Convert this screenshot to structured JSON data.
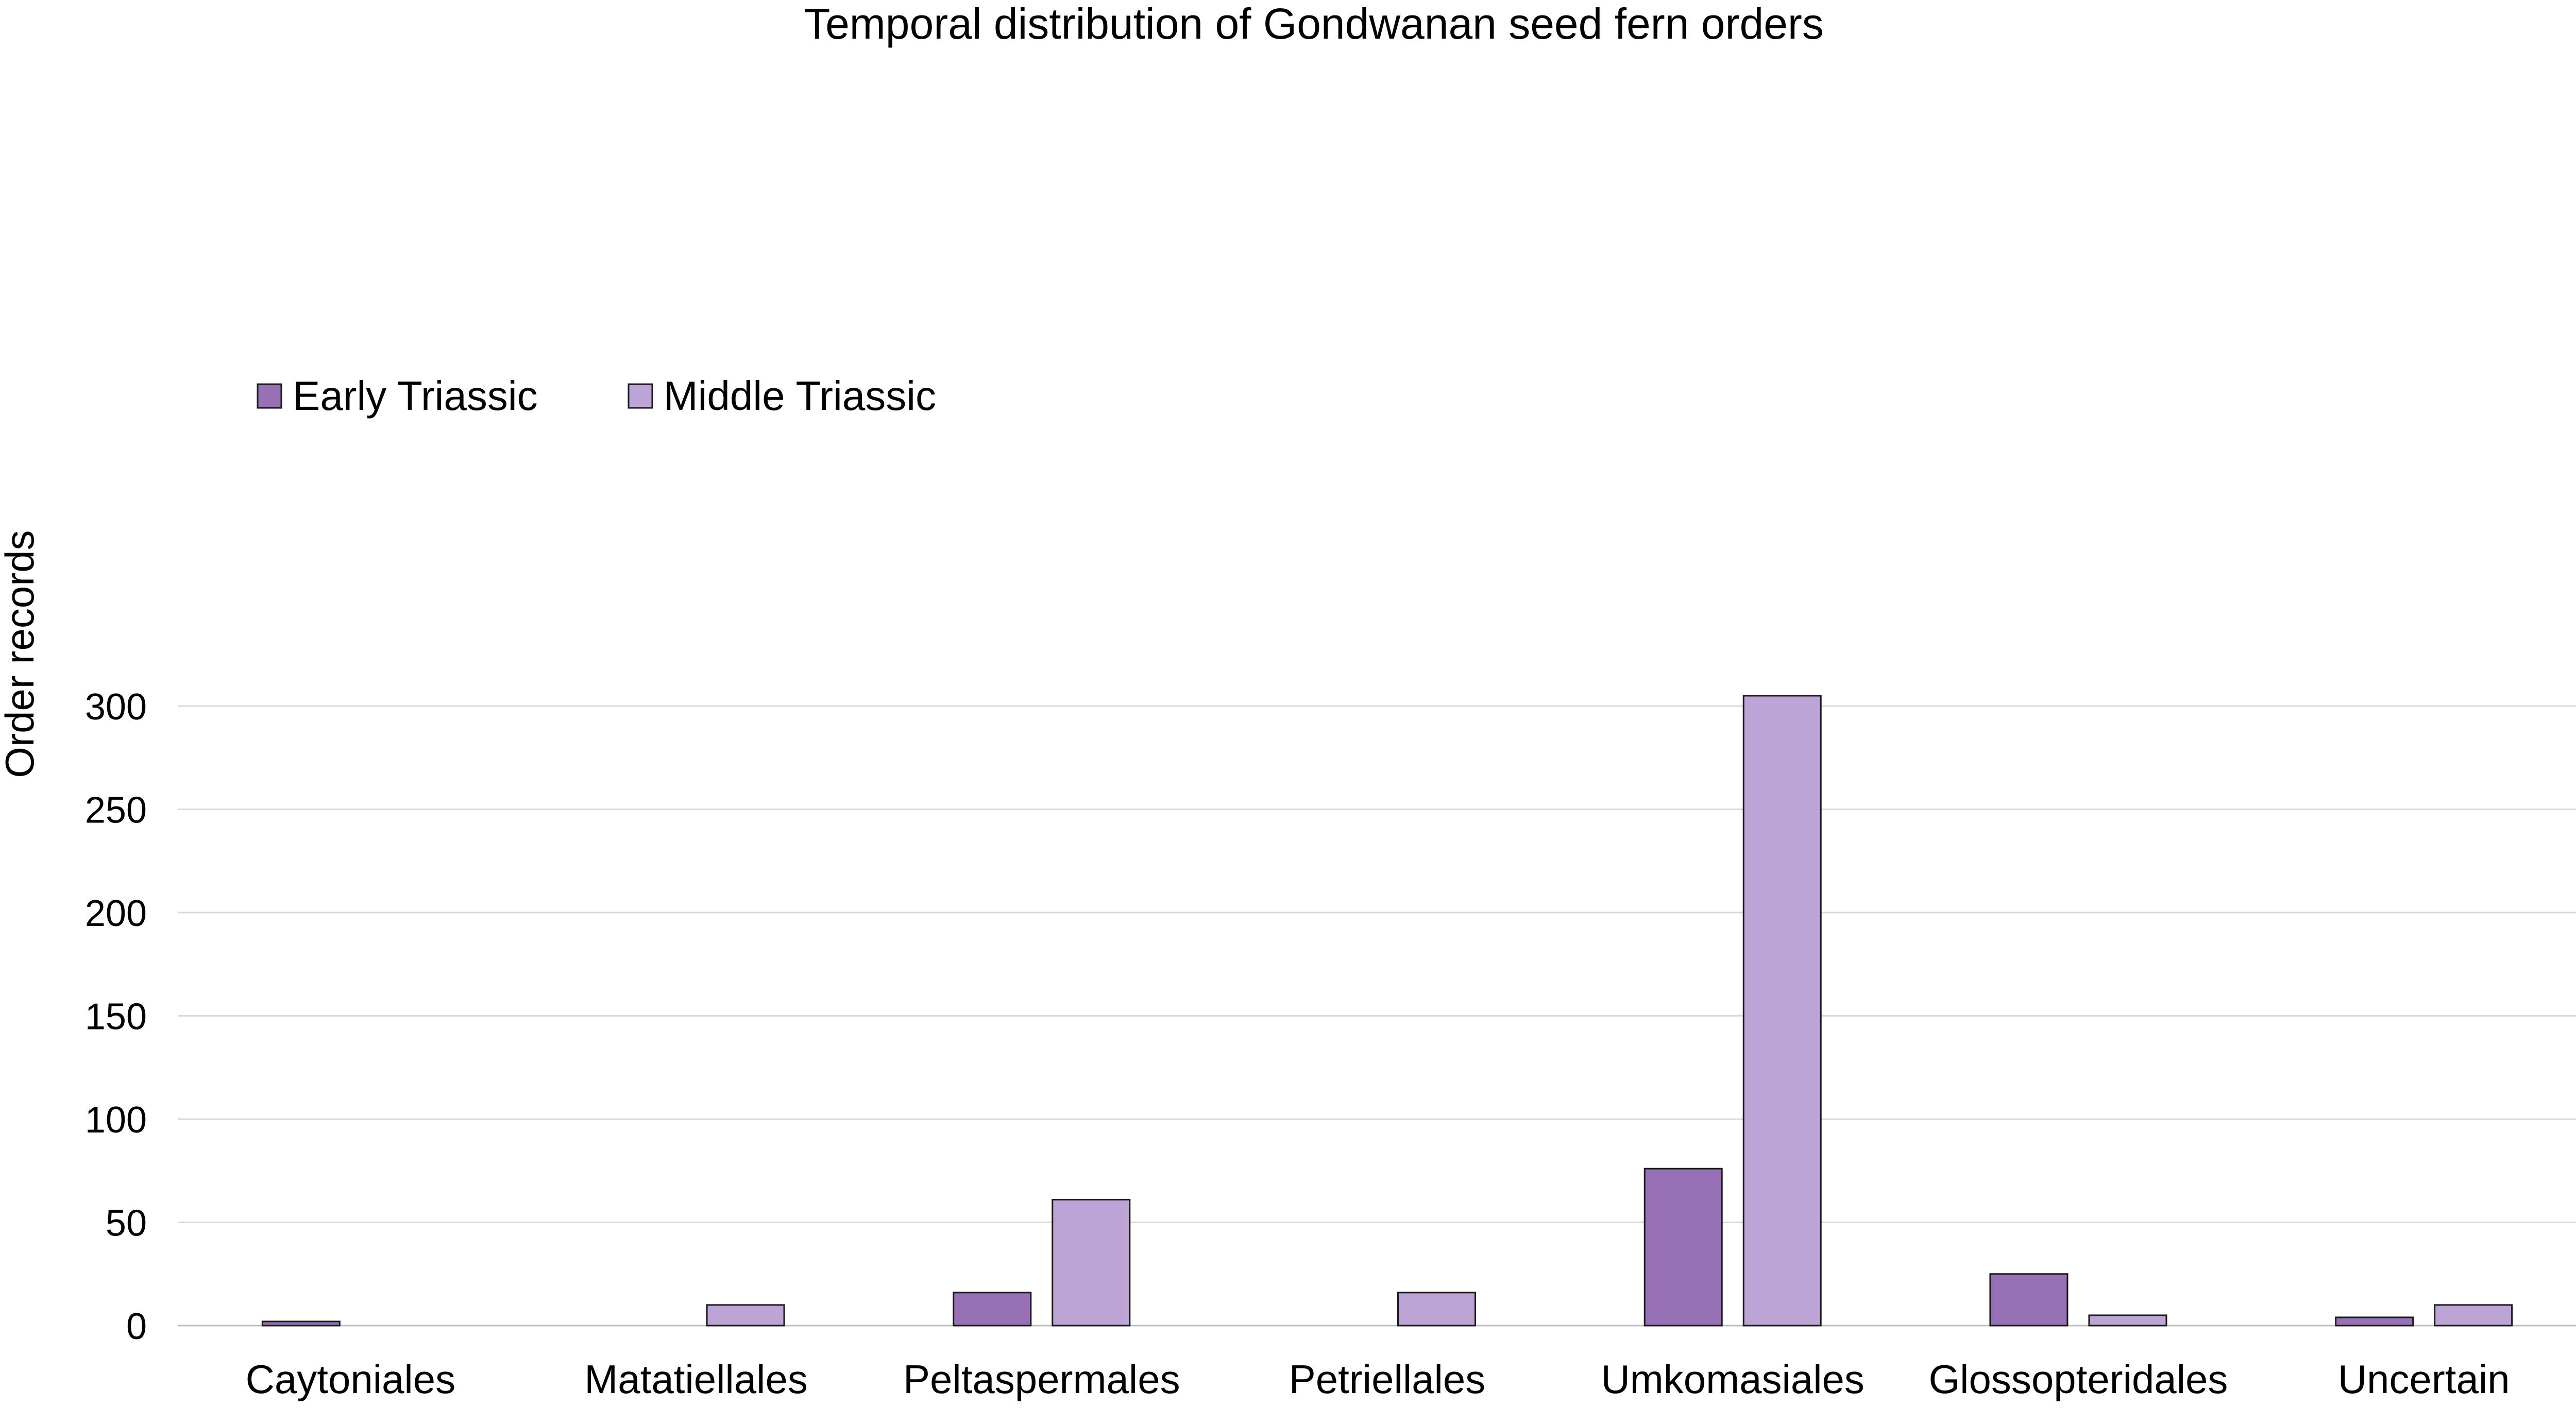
{
  "chart_data": {
    "type": "bar",
    "title": "Temporal distribution of Gondwanan seed fern orders",
    "xlabel": "",
    "ylabel": "Order records",
    "ylim": [
      0,
      310
    ],
    "yticks": [
      0,
      50,
      100,
      150,
      200,
      250,
      300
    ],
    "grid": true,
    "legend_position": "upper-left",
    "categories": [
      "Caytoniales",
      "Matatiellales",
      "Peltaspermales",
      "Petriellales",
      "Umkomasiales",
      "Glossopteridales",
      "Uncertain"
    ],
    "series": [
      {
        "name": "Early Triassic",
        "color": "#9770b5",
        "values": [
          2,
          0,
          16,
          0,
          76,
          25,
          4
        ]
      },
      {
        "name": "Middle Triassic",
        "color": "#bca4d6",
        "values": [
          0,
          10,
          61,
          16,
          305,
          5,
          10
        ]
      }
    ]
  }
}
